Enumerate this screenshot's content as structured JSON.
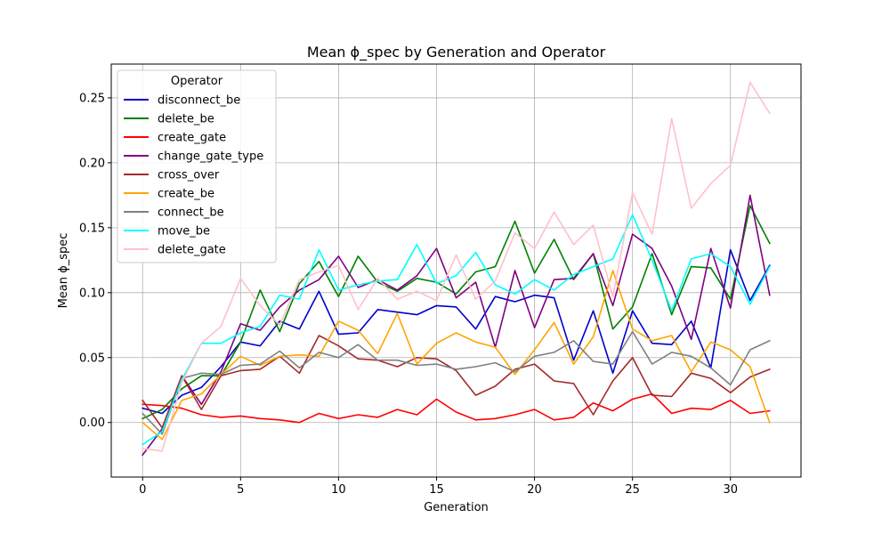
{
  "chart_data": {
    "type": "line",
    "title": "Mean ϕ_spec by Generation and Operator",
    "xlabel": "Generation",
    "ylabel": "Mean ϕ_spec",
    "xlim": [
      -1.6,
      33.6
    ],
    "ylim": [
      -0.042,
      0.276
    ],
    "xticks": [
      0,
      5,
      10,
      15,
      20,
      25,
      30
    ],
    "yticks": [
      0.0,
      0.05,
      0.1,
      0.15,
      0.2,
      0.25
    ],
    "ytick_labels": [
      "0.00",
      "0.05",
      "0.10",
      "0.15",
      "0.20",
      "0.25"
    ],
    "grid": true,
    "legend": {
      "title": "Operator",
      "position": "top-left"
    },
    "x": [
      0,
      1,
      2,
      3,
      4,
      5,
      6,
      7,
      8,
      9,
      10,
      11,
      12,
      13,
      14,
      15,
      16,
      17,
      18,
      19,
      20,
      21,
      22,
      23,
      24,
      25,
      26,
      27,
      28,
      29,
      30,
      31,
      32
    ],
    "series": [
      {
        "name": "disconnect_be",
        "color": "#0000cd",
        "values": [
          0.011,
          0.007,
          0.021,
          0.027,
          0.043,
          0.062,
          0.059,
          0.078,
          0.072,
          0.101,
          0.068,
          0.069,
          0.087,
          0.085,
          0.083,
          0.09,
          0.089,
          0.072,
          0.097,
          0.093,
          0.098,
          0.096,
          0.048,
          0.086,
          0.038,
          0.086,
          0.061,
          0.06,
          0.078,
          0.042,
          0.133,
          0.094,
          0.121
        ]
      },
      {
        "name": "delete_be",
        "color": "#008000",
        "values": [
          0.003,
          0.01,
          0.026,
          0.036,
          0.036,
          0.062,
          0.102,
          0.07,
          0.107,
          0.124,
          0.097,
          0.128,
          0.108,
          0.101,
          0.111,
          0.108,
          0.099,
          0.116,
          0.12,
          0.155,
          0.115,
          0.141,
          0.11,
          0.13,
          0.072,
          0.089,
          0.13,
          0.083,
          0.12,
          0.119,
          0.095,
          0.167,
          0.138
        ]
      },
      {
        "name": "create_gate",
        "color": "#ff0000",
        "values": [
          0.014,
          0.013,
          0.011,
          0.006,
          0.004,
          0.005,
          0.003,
          0.002,
          0.0,
          0.007,
          0.003,
          0.006,
          0.004,
          0.01,
          0.006,
          0.018,
          0.008,
          0.002,
          0.003,
          0.006,
          0.01,
          0.002,
          0.004,
          0.015,
          0.009,
          0.018,
          0.022,
          0.007,
          0.011,
          0.01,
          0.017,
          0.007,
          0.009
        ]
      },
      {
        "name": "change_gate_type",
        "color": "#800080",
        "values": [
          -0.025,
          -0.005,
          0.036,
          0.014,
          0.039,
          0.076,
          0.071,
          0.089,
          0.102,
          0.11,
          0.128,
          0.104,
          0.11,
          0.102,
          0.113,
          0.134,
          0.096,
          0.108,
          0.058,
          0.117,
          0.073,
          0.11,
          0.111,
          0.13,
          0.09,
          0.145,
          0.134,
          0.105,
          0.064,
          0.134,
          0.088,
          0.175,
          0.098
        ]
      },
      {
        "name": "cross_over",
        "color": "#a52a2a",
        "values": [
          0.017,
          -0.004,
          0.036,
          0.01,
          0.036,
          0.04,
          0.041,
          0.051,
          0.038,
          0.067,
          0.059,
          0.049,
          0.048,
          0.043,
          0.05,
          0.049,
          0.04,
          0.021,
          0.028,
          0.041,
          0.045,
          0.032,
          0.03,
          0.006,
          0.032,
          0.05,
          0.021,
          0.02,
          0.038,
          0.034,
          0.023,
          0.035,
          0.041
        ]
      },
      {
        "name": "create_be",
        "color": "#ffa500",
        "values": [
          0.0,
          -0.013,
          0.017,
          0.022,
          0.037,
          0.051,
          0.044,
          0.051,
          0.052,
          0.051,
          0.078,
          0.071,
          0.053,
          0.084,
          0.045,
          0.061,
          0.069,
          0.062,
          0.058,
          0.037,
          0.056,
          0.077,
          0.045,
          0.066,
          0.117,
          0.072,
          0.063,
          0.067,
          0.039,
          0.062,
          0.056,
          0.043,
          0.0
        ]
      },
      {
        "name": "connect_be",
        "color": "#808080",
        "values": [
          0.007,
          -0.009,
          0.034,
          0.038,
          0.037,
          0.044,
          0.045,
          0.055,
          0.042,
          0.054,
          0.05,
          0.06,
          0.048,
          0.048,
          0.044,
          0.045,
          0.041,
          0.043,
          0.046,
          0.039,
          0.051,
          0.054,
          0.063,
          0.047,
          0.045,
          0.07,
          0.045,
          0.054,
          0.051,
          0.042,
          0.029,
          0.056,
          0.063
        ]
      },
      {
        "name": "move_be",
        "color": "#00ffff",
        "values": [
          -0.017,
          -0.007,
          0.033,
          0.061,
          0.061,
          0.069,
          0.074,
          0.098,
          0.095,
          0.133,
          0.102,
          0.106,
          0.109,
          0.11,
          0.137,
          0.107,
          0.113,
          0.131,
          0.106,
          0.099,
          0.11,
          0.102,
          0.114,
          0.12,
          0.126,
          0.16,
          0.125,
          0.086,
          0.126,
          0.13,
          0.12,
          0.091,
          0.12
        ]
      },
      {
        "name": "delete_gate",
        "color": "#ffc0cb",
        "values": [
          -0.02,
          -0.022,
          0.031,
          0.061,
          0.074,
          0.111,
          0.09,
          0.075,
          0.11,
          0.116,
          0.121,
          0.087,
          0.111,
          0.095,
          0.101,
          0.094,
          0.129,
          0.095,
          0.109,
          0.146,
          0.134,
          0.162,
          0.137,
          0.152,
          0.097,
          0.177,
          0.145,
          0.234,
          0.165,
          0.184,
          0.198,
          0.262,
          0.238
        ]
      }
    ]
  }
}
